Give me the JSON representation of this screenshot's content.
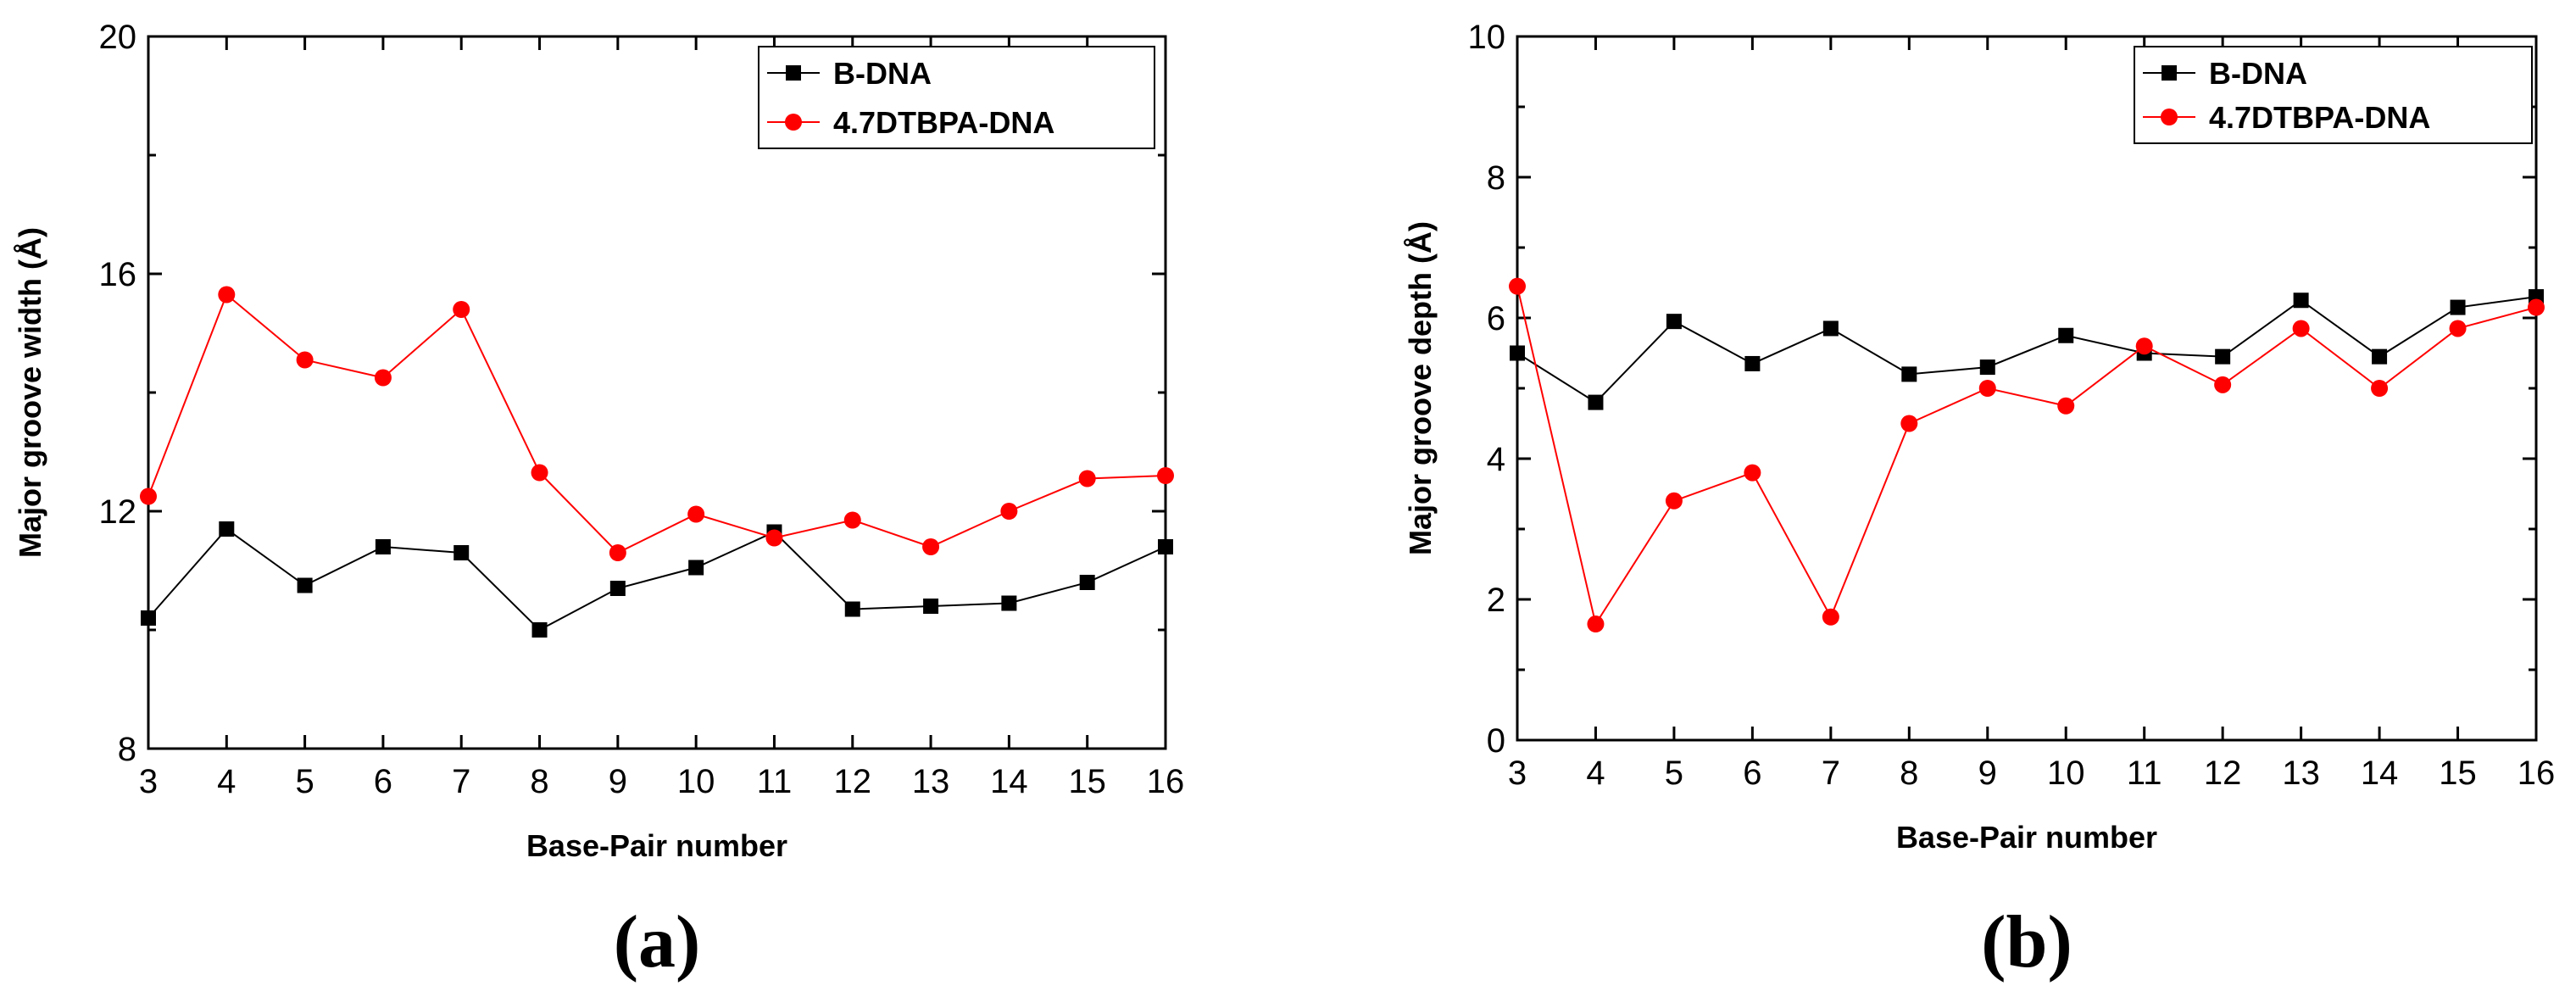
{
  "chart_data": [
    {
      "type": "line",
      "panel_label": "(a)",
      "xlabel": "Base-Pair number",
      "ylabel": "Major groove width (Å)",
      "x": [
        3,
        4,
        5,
        6,
        7,
        8,
        9,
        10,
        11,
        12,
        13,
        14,
        15,
        16
      ],
      "xlim": [
        3,
        16
      ],
      "ylim": [
        8,
        20
      ],
      "xticks": [
        3,
        4,
        5,
        6,
        7,
        8,
        9,
        10,
        11,
        12,
        13,
        14,
        15,
        16
      ],
      "yticks": [
        8,
        12,
        16,
        20
      ],
      "legend_position": "top-right",
      "series": [
        {
          "name": "B-DNA",
          "color": "#000000",
          "marker": "square",
          "values": [
            10.2,
            11.7,
            10.75,
            11.4,
            11.3,
            10.0,
            10.7,
            11.05,
            11.65,
            10.35,
            10.4,
            10.45,
            10.8,
            11.4
          ]
        },
        {
          "name": "4.7DTBPA-DNA",
          "color": "#ff0000",
          "marker": "circle",
          "values": [
            12.25,
            15.65,
            14.55,
            14.25,
            15.4,
            12.65,
            11.3,
            11.95,
            11.55,
            11.85,
            11.4,
            12.0,
            12.55,
            12.6
          ]
        }
      ]
    },
    {
      "type": "line",
      "panel_label": "(b)",
      "xlabel": "Base-Pair number",
      "ylabel": "Major groove depth (Å)",
      "x": [
        3,
        4,
        5,
        6,
        7,
        8,
        9,
        10,
        11,
        12,
        13,
        14,
        15,
        16
      ],
      "xlim": [
        3,
        16
      ],
      "ylim": [
        0,
        10
      ],
      "xticks": [
        3,
        4,
        5,
        6,
        7,
        8,
        9,
        10,
        11,
        12,
        13,
        14,
        15,
        16
      ],
      "yticks": [
        0,
        2,
        4,
        6,
        8,
        10
      ],
      "legend_position": "top-right",
      "series": [
        {
          "name": "B-DNA",
          "color": "#000000",
          "marker": "square",
          "values": [
            5.5,
            4.8,
            5.95,
            5.35,
            5.85,
            5.2,
            5.3,
            5.75,
            5.5,
            5.45,
            6.25,
            5.45,
            6.15,
            6.3
          ]
        },
        {
          "name": "4.7DTBPA-DNA",
          "color": "#ff0000",
          "marker": "circle",
          "values": [
            6.45,
            1.65,
            3.4,
            3.8,
            1.75,
            4.5,
            5.0,
            4.75,
            5.6,
            5.05,
            5.85,
            5.0,
            5.85,
            6.15
          ]
        }
      ]
    }
  ]
}
